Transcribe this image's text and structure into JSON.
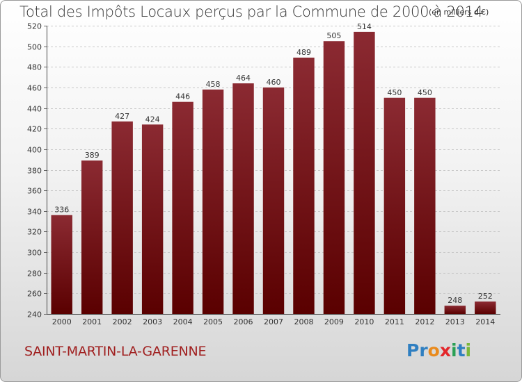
{
  "chart_data": {
    "type": "bar",
    "title": "Total des Impôts Locaux perçus par la Commune de 2000 à 2014",
    "subtitle": "(en milliers d'€)",
    "categories": [
      "2000",
      "2001",
      "2002",
      "2003",
      "2004",
      "2005",
      "2006",
      "2007",
      "2008",
      "2009",
      "2010",
      "2011",
      "2012",
      "2013",
      "2014"
    ],
    "values": [
      336,
      389,
      427,
      424,
      446,
      458,
      464,
      460,
      489,
      505,
      514,
      450,
      450,
      248,
      252
    ],
    "yticks": [
      240,
      260,
      280,
      300,
      320,
      340,
      360,
      380,
      400,
      420,
      440,
      460,
      480,
      500,
      520
    ],
    "ylim": [
      240,
      520
    ],
    "xlabel": "",
    "ylabel": "",
    "grid": true,
    "bar_color_top": "#8b2a32",
    "bar_color_bottom": "#5a0000"
  },
  "commune": "SAINT-MARTIN-LA-GARENNE",
  "logo": {
    "text": "Proxiti",
    "letters": [
      {
        "ch": "P",
        "color": "#2f7fc1"
      },
      {
        "ch": "r",
        "color": "#2f7fc1"
      },
      {
        "ch": "o",
        "color": "#e98a1c"
      },
      {
        "ch": "x",
        "color": "#e3262a"
      },
      {
        "ch": "i",
        "color": "#2aa055"
      },
      {
        "ch": "t",
        "color": "#2f7fc1"
      },
      {
        "ch": "i",
        "color": "#7ab83a"
      }
    ]
  }
}
